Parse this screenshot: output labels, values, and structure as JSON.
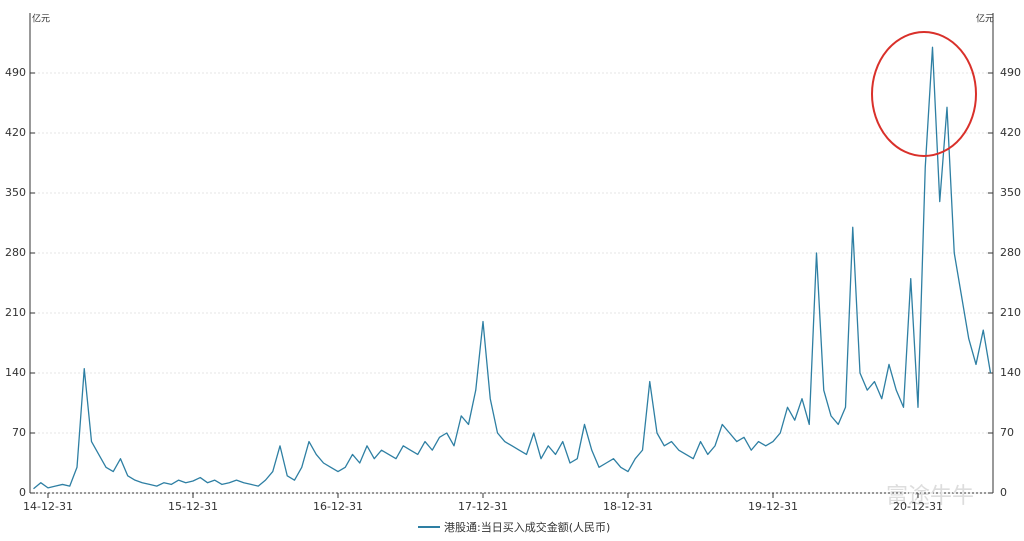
{
  "chart_data": {
    "type": "line",
    "y_label": "亿元",
    "y2_label": "亿元",
    "watermark": "富途牛牛",
    "categories": [
      null,
      null,
      "14-12-31",
      null,
      null,
      null,
      null,
      null,
      null,
      null,
      null,
      null,
      null,
      null,
      null,
      null,
      null,
      null,
      null,
      null,
      null,
      null,
      "15-12-31",
      null,
      null,
      null,
      null,
      null,
      null,
      null,
      null,
      null,
      null,
      null,
      null,
      null,
      null,
      null,
      null,
      null,
      null,
      null,
      "16-12-31",
      null,
      null,
      null,
      null,
      null,
      null,
      null,
      null,
      null,
      null,
      null,
      null,
      null,
      null,
      null,
      null,
      null,
      null,
      null,
      "17-12-31",
      null,
      null,
      null,
      null,
      null,
      null,
      null,
      null,
      null,
      null,
      null,
      null,
      null,
      null,
      null,
      null,
      null,
      null,
      null,
      "18-12-31",
      null,
      null,
      null,
      null,
      null,
      null,
      null,
      null,
      null,
      null,
      null,
      null,
      null,
      null,
      null,
      null,
      null,
      null,
      null,
      "19-12-31",
      null,
      null,
      null,
      null,
      null,
      null,
      null,
      null,
      null,
      null,
      null,
      null,
      null,
      null,
      null,
      null,
      null,
      null,
      null,
      "20-12-31",
      null,
      null,
      null,
      null,
      null,
      null,
      null,
      null,
      null,
      null
    ],
    "series": [
      {
        "name": "港股通:当日买入成交金额(人民币)",
        "color": "#2e7fa3",
        "values": [
          5,
          12,
          6,
          8,
          10,
          8,
          30,
          145,
          60,
          45,
          30,
          25,
          40,
          20,
          15,
          12,
          10,
          8,
          12,
          10,
          15,
          12,
          14,
          18,
          12,
          15,
          10,
          12,
          15,
          12,
          10,
          8,
          15,
          25,
          55,
          20,
          15,
          30,
          60,
          45,
          35,
          30,
          25,
          30,
          45,
          35,
          55,
          40,
          50,
          45,
          40,
          55,
          50,
          45,
          60,
          50,
          65,
          70,
          55,
          90,
          80,
          120,
          200,
          110,
          70,
          60,
          55,
          50,
          45,
          70,
          40,
          55,
          45,
          60,
          35,
          40,
          80,
          50,
          30,
          35,
          40,
          30,
          25,
          40,
          50,
          130,
          70,
          55,
          60,
          50,
          45,
          40,
          60,
          45,
          55,
          80,
          70,
          60,
          65,
          50,
          60,
          55,
          60,
          70,
          100,
          85,
          110,
          80,
          280,
          120,
          90,
          80,
          100,
          310,
          140,
          120,
          130,
          110,
          150,
          120,
          100,
          250,
          100,
          380,
          520,
          340,
          450,
          280,
          230,
          180,
          150,
          190,
          140
        ]
      }
    ],
    "ylim": [
      0,
      560
    ],
    "yticks": [
      0,
      70,
      140,
      210,
      280,
      350,
      420,
      490
    ],
    "y2lim": [
      0,
      560
    ],
    "y2ticks": [
      0,
      70,
      140,
      210,
      280,
      350,
      420,
      490
    ],
    "grid": true
  }
}
